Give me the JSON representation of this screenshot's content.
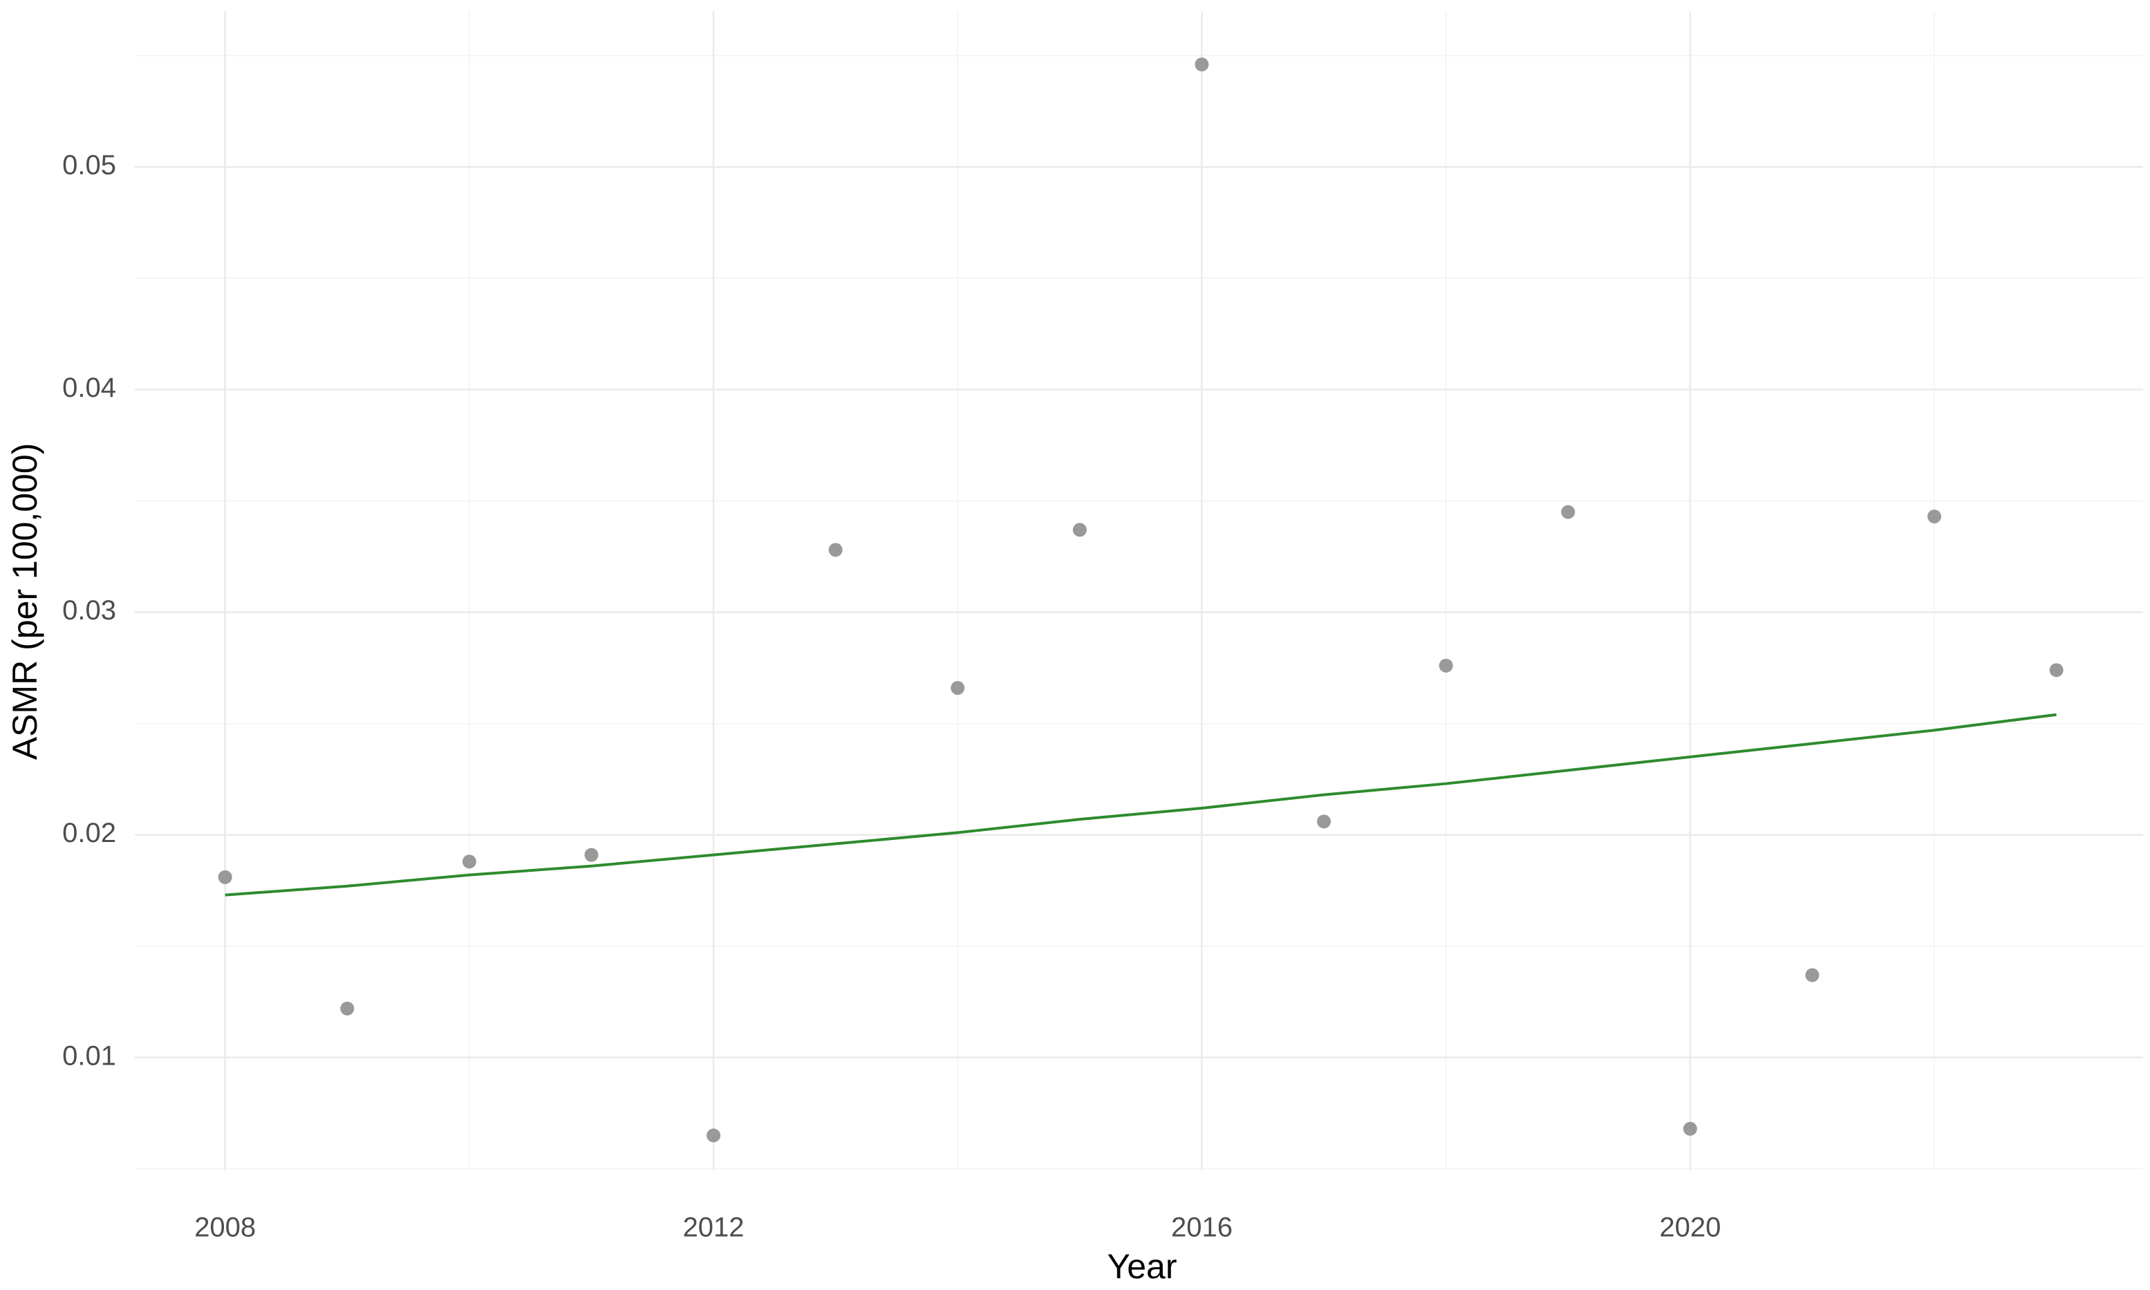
{
  "chart_data": {
    "type": "scatter",
    "x_label": "Year",
    "y_label": "ASMR (per 100,000)",
    "x": [
      2008,
      2009,
      2010,
      2011,
      2012,
      2013,
      2014,
      2015,
      2016,
      2017,
      2018,
      2019,
      2020,
      2021,
      2022,
      2023
    ],
    "series": [
      {
        "type": "scatter",
        "color": "#999999",
        "values": [
          0.0181,
          0.0122,
          0.0188,
          0.0191,
          0.0065,
          0.0328,
          0.0266,
          0.0337,
          0.0546,
          0.0206,
          0.0276,
          0.0345,
          0.0068,
          0.0137,
          0.0343,
          0.0274
        ]
      },
      {
        "type": "line",
        "color": "#2e8b2e",
        "values": [
          0.0173,
          0.0177,
          0.0182,
          0.0186,
          0.0191,
          0.0196,
          0.0201,
          0.0207,
          0.0212,
          0.0218,
          0.0223,
          0.0229,
          0.0235,
          0.0241,
          0.0247,
          0.0254
        ]
      }
    ],
    "xlim": [
      2007.26,
      2023.71
    ],
    "xticks": [
      2008,
      2012,
      2016,
      2020
    ],
    "ylim": [
      0.00493,
      0.057
    ],
    "yticks": [
      0.01,
      0.02,
      0.03,
      0.04,
      0.05
    ],
    "grid": true
  }
}
